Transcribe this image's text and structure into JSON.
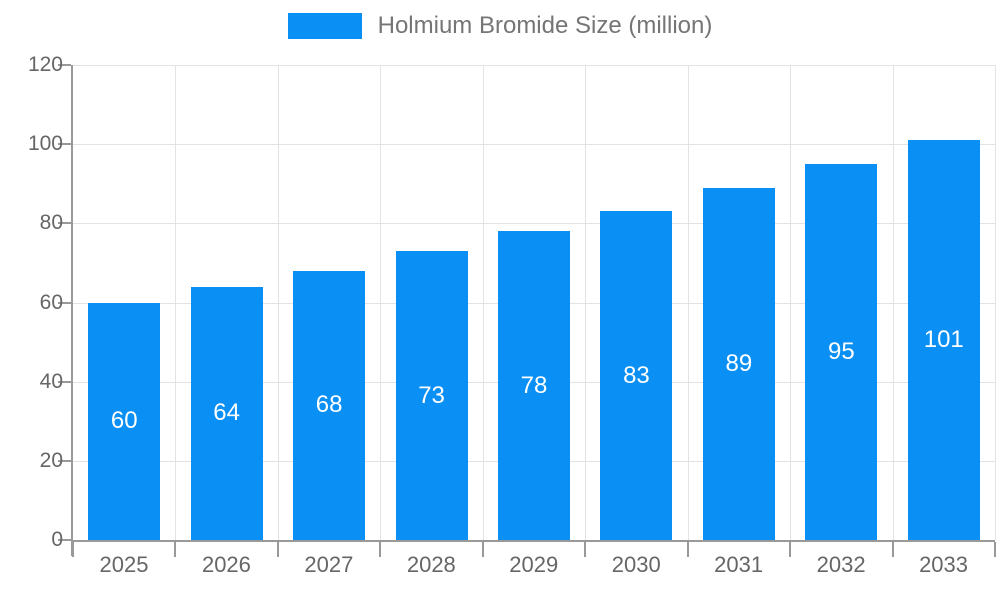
{
  "legend": {
    "label": "Holmium Bromide Size (million)"
  },
  "chart_data": {
    "type": "bar",
    "title": "",
    "xlabel": "",
    "ylabel": "",
    "categories": [
      "2025",
      "2026",
      "2027",
      "2028",
      "2029",
      "2030",
      "2031",
      "2032",
      "2033"
    ],
    "values": [
      60,
      64,
      68,
      73,
      78,
      83,
      89,
      95,
      101
    ],
    "series_name": "Holmium Bromide Size (million)",
    "ylim": [
      0,
      120
    ],
    "yticks": [
      0,
      20,
      40,
      60,
      80,
      100,
      120
    ],
    "grid": true,
    "legend_position": "top-center",
    "bar_color": "#0a8ff5",
    "bar_label_color": "#ffffff",
    "grid_color": "#e3e3e3",
    "axis_color": "#999999",
    "tick_label_color": "#666666",
    "legend_text_color": "#757575"
  }
}
